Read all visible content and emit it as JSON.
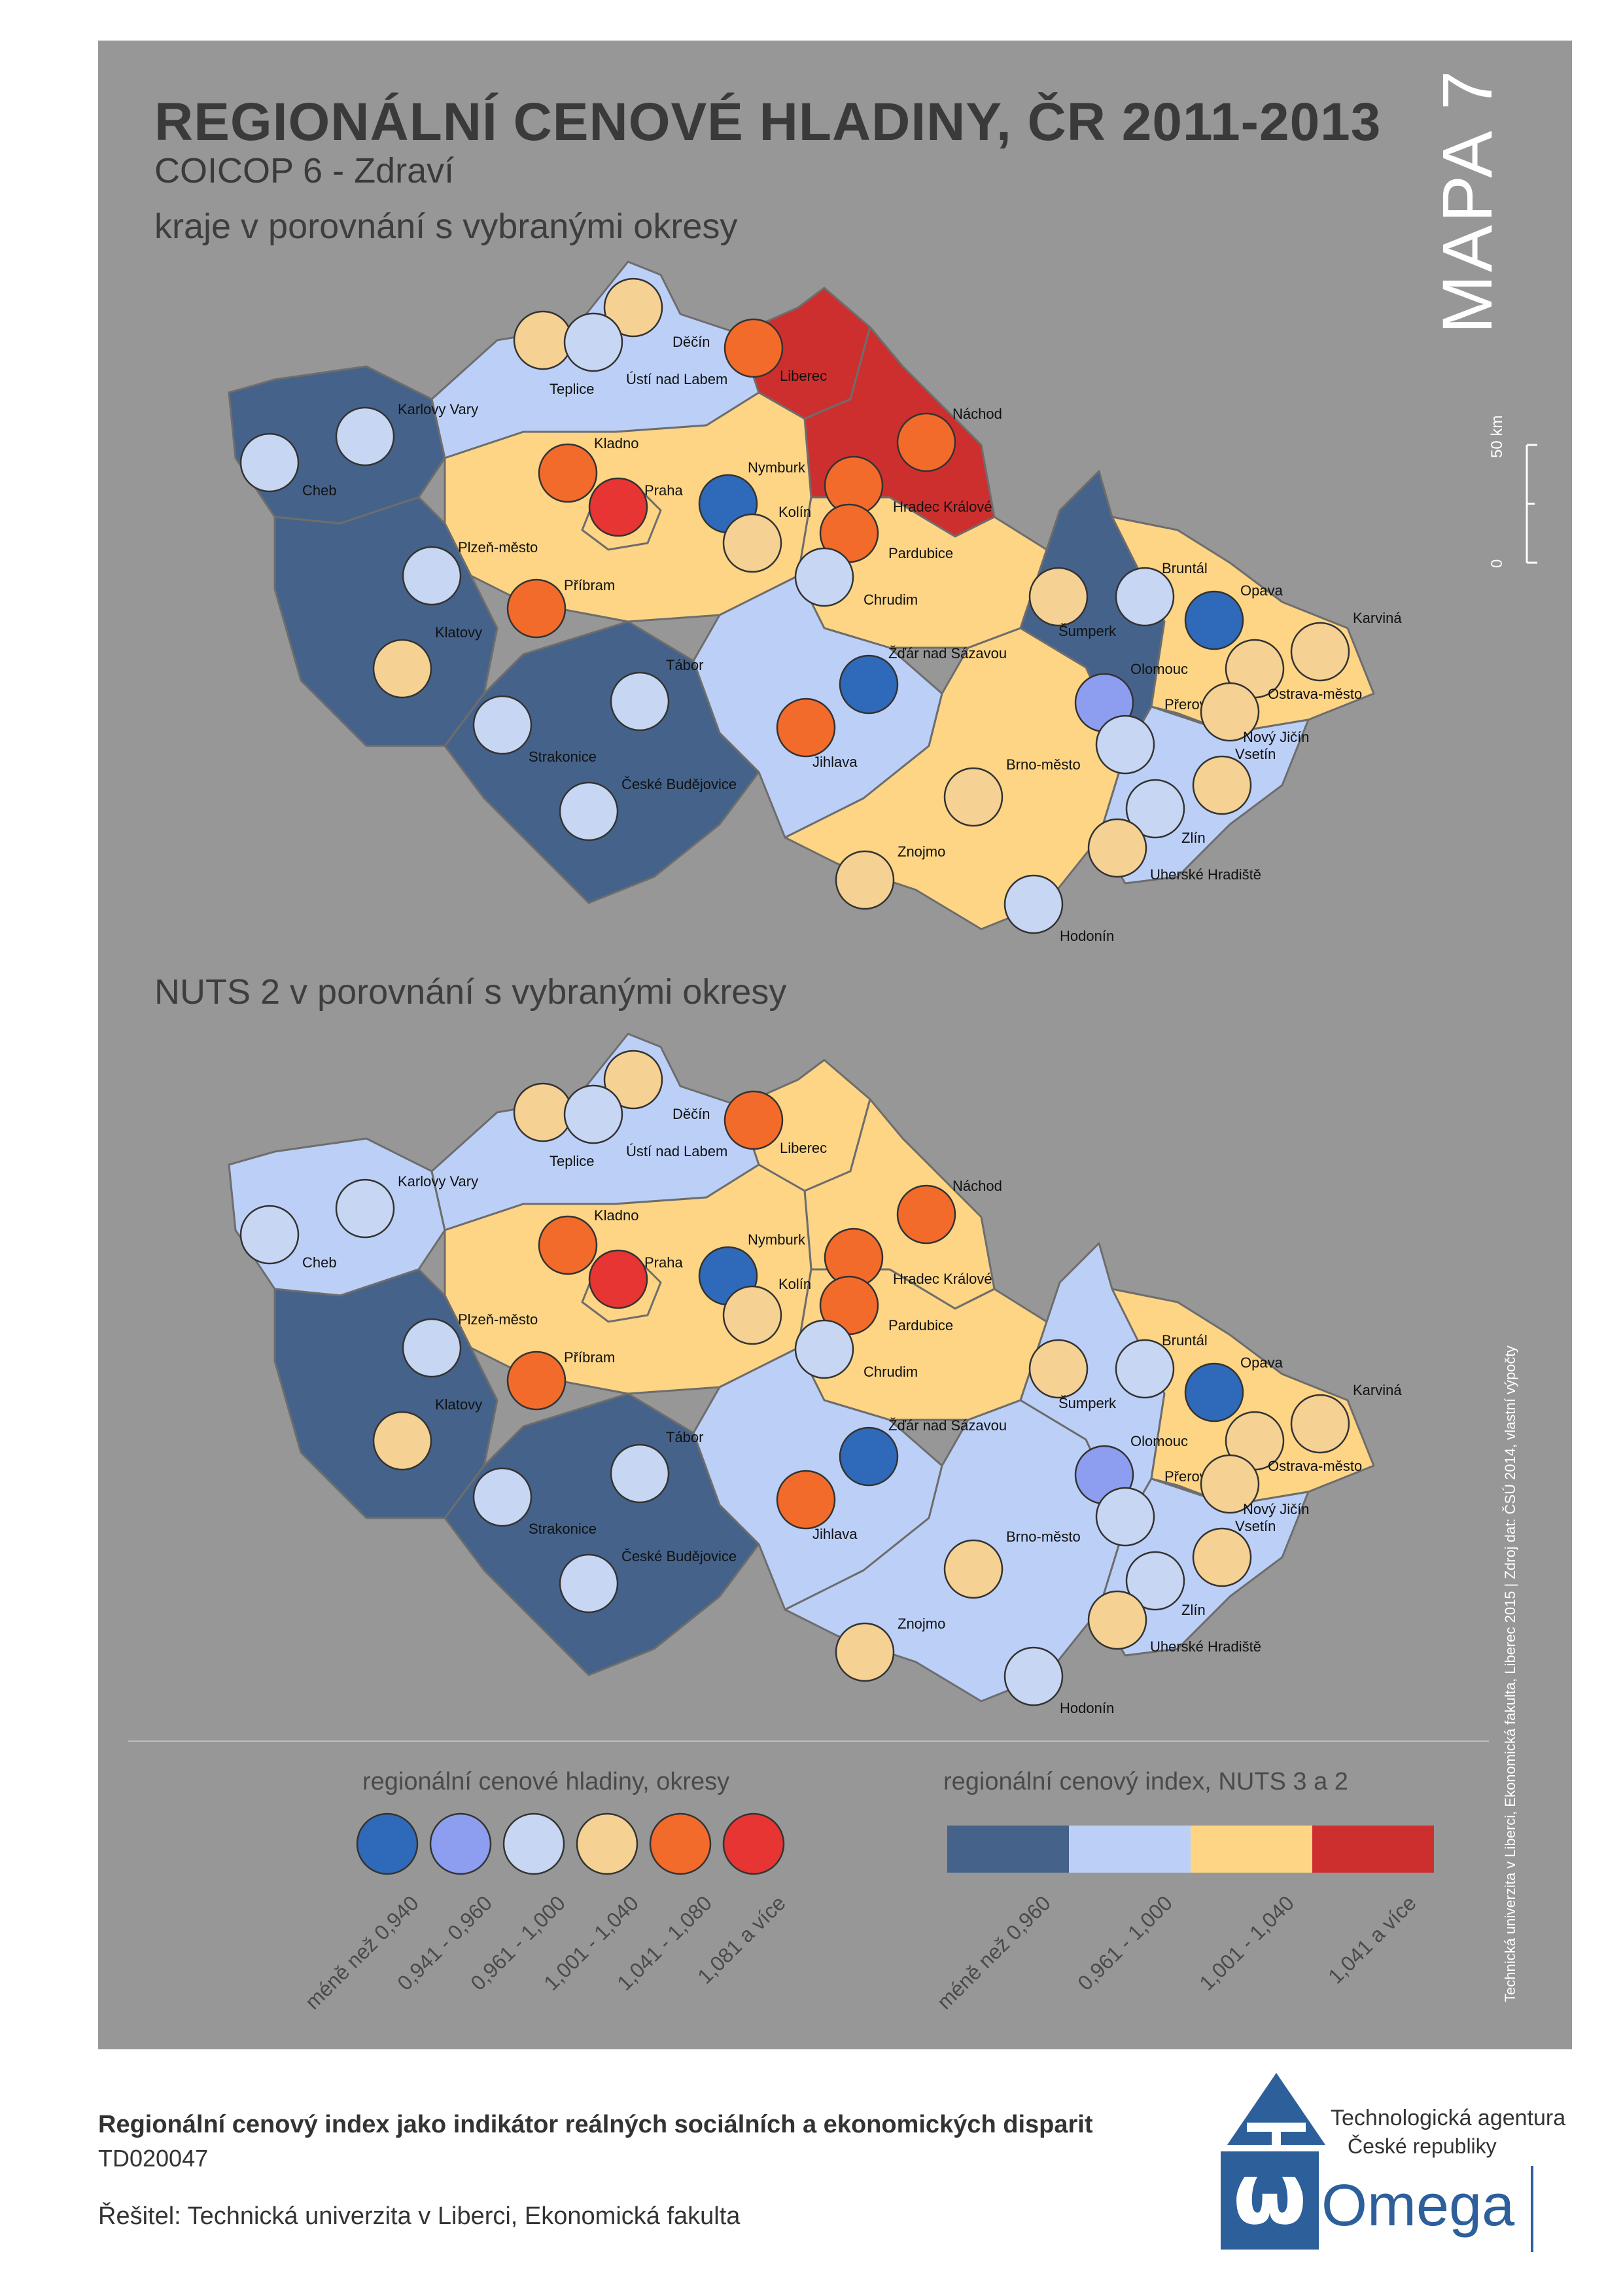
{
  "header": {
    "title": "REGIONÁLNÍ CENOVÉ HLADINY, ČR 2011-2013",
    "subtitle": "COICOP 6 -  Zdraví",
    "section1": "kraje v porovnání s vybranými okresy",
    "section2": "NUTS 2 v porovnání s vybranými okresy",
    "map_number": "MAPA 7"
  },
  "scale_bar": {
    "label_0": "0",
    "label_50": "50 km"
  },
  "credits": "Technická univerzita v Liberci, Ekonomická fakulta, Liberec 2015 | Zdroj dat: ČSÚ 2014, vlastní výpočty",
  "colors": {
    "background": "#979797",
    "region_below": "#45638a",
    "region_mid": "#bcd0f7",
    "region_above": "#fdd585",
    "region_high": "#cd2f2f",
    "district_lt_0940": "#2e6ab9",
    "district_0941_0960": "#8d9ef0",
    "district_0961_1000": "#c7d6f2",
    "district_1001_1040": "#f5d193",
    "district_1041_1080": "#f26b2a",
    "district_1081_plus": "#e63532"
  },
  "legend_districts": {
    "title": "regionální cenové hladiny, okresy",
    "items": [
      {
        "label": "méně než 0,940",
        "color": "#2e6ab9"
      },
      {
        "label": "0,941 - 0,960",
        "color": "#8d9ef0"
      },
      {
        "label": "0,961 - 1,000",
        "color": "#c7d6f2"
      },
      {
        "label": "1,001 - 1,040",
        "color": "#f5d193"
      },
      {
        "label": "1,041 - 1,080",
        "color": "#f26b2a"
      },
      {
        "label": "1,081 a více",
        "color": "#e63532"
      }
    ]
  },
  "legend_regions": {
    "title": "regionální cenový index, NUTS 3 a 2",
    "items": [
      {
        "label": "méně než 0,960",
        "color": "#45638a"
      },
      {
        "label": "0,961 - 1,000",
        "color": "#bcd0f7"
      },
      {
        "label": "1,001 - 1,040",
        "color": "#fdd585"
      },
      {
        "label": "1,041 a více",
        "color": "#cd2f2f"
      }
    ]
  },
  "district_names": [
    "Děčín",
    "Liberec",
    "Teplice",
    "Ústí nad Labem",
    "Náchod",
    "Karlovy Vary",
    "Cheb",
    "Kladno",
    "Nymburk",
    "Praha",
    "Kolín",
    "Hradec Králové",
    "Pardubice",
    "Plzeň-město",
    "Příbram",
    "Chrudim",
    "Bruntál",
    "Opava",
    "Karviná",
    "Šumperk",
    "Klatovy",
    "Žďár nad Sázavou",
    "Tábor",
    "Olomouc",
    "Ostrava-město",
    "Přerov",
    "Nový Jičín",
    "Jihlava",
    "Strakonice",
    "Vsetín",
    "Brno-město",
    "České Budějovice",
    "Zlín",
    "Znojmo",
    "Uherské Hradiště",
    "Hodonín"
  ],
  "footer": {
    "project_title": "Regionální cenový index jako indikátor reálných sociálních a ekonomických disparit",
    "project_code": "TD020047",
    "solver": "Řešitel: Technická univerzita v Liberci, Ekonomická fakulta",
    "agency_line1": "Technologická agentura",
    "agency_line2": "České republiky",
    "program": "Omega"
  }
}
